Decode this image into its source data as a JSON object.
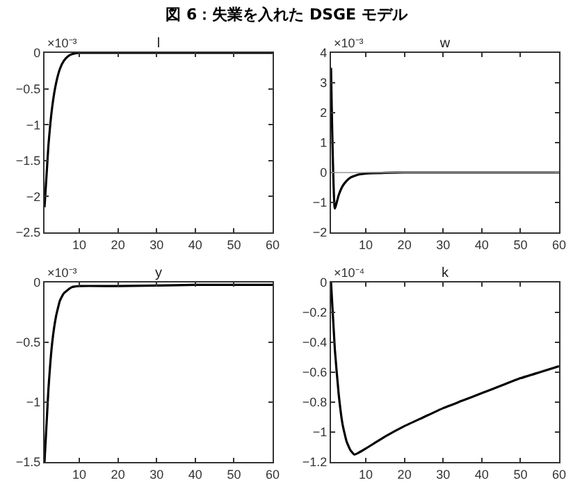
{
  "chart_data": [
    {
      "type": "line",
      "title": "l",
      "ylabel": "×10⁻³",
      "annotations": [
        "図 6：失業を入れた DSGE モデル"
      ],
      "xlim": [
        1,
        60
      ],
      "xticks": [
        10,
        20,
        30,
        40,
        50,
        60
      ],
      "ylim": [
        -2.5,
        0
      ],
      "yticks": [
        -2.5,
        -2,
        -1.5,
        -1,
        -0.5,
        0
      ],
      "x": [
        1,
        2,
        3,
        4,
        5,
        6,
        7,
        8,
        10,
        20,
        60
      ],
      "series": [
        {
          "color": "#000000",
          "values": [
            -2.15,
            -1.3,
            -0.75,
            -0.42,
            -0.22,
            -0.11,
            -0.05,
            -0.02,
            0,
            0,
            0
          ]
        }
      ]
    },
    {
      "type": "line",
      "title": "w",
      "ylabel": "×10⁻³",
      "xlim": [
        1,
        60
      ],
      "xticks": [
        10,
        20,
        30,
        40,
        50,
        60
      ],
      "ylim": [
        -2,
        4
      ],
      "yticks": [
        -2,
        -1,
        0,
        1,
        2,
        3,
        4
      ],
      "ref_lines": [
        {
          "axis": "y",
          "value": 0,
          "color": "#999999"
        }
      ],
      "x": [
        1,
        2,
        3,
        4,
        5,
        6,
        8,
        10,
        15,
        20,
        60
      ],
      "series": [
        {
          "color": "#000000",
          "values": [
            3.5,
            -1.2,
            -0.75,
            -0.45,
            -0.28,
            -0.17,
            -0.07,
            -0.03,
            -0.01,
            0,
            0
          ]
        }
      ]
    },
    {
      "type": "line",
      "title": "y",
      "ylabel": "×10⁻³",
      "xlim": [
        1,
        60
      ],
      "xticks": [
        10,
        20,
        30,
        40,
        50,
        60
      ],
      "ylim": [
        -1.5,
        0
      ],
      "yticks": [
        -1.5,
        -1,
        -0.5,
        0
      ],
      "x": [
        1,
        2,
        3,
        4,
        5,
        6,
        8,
        10,
        20,
        40,
        60
      ],
      "series": [
        {
          "color": "#000000",
          "values": [
            -1.5,
            -0.9,
            -0.5,
            -0.28,
            -0.15,
            -0.09,
            -0.04,
            -0.03,
            -0.03,
            -0.02,
            -0.02
          ]
        }
      ]
    },
    {
      "type": "line",
      "title": "k",
      "ylabel": "×10⁻⁴",
      "xlim": [
        1,
        60
      ],
      "xticks": [
        10,
        20,
        30,
        40,
        50,
        60
      ],
      "ylim": [
        -1.2,
        0
      ],
      "yticks": [
        -1.2,
        -1,
        -0.8,
        -0.6,
        -0.4,
        -0.2,
        0
      ],
      "x": [
        1,
        2,
        3,
        4,
        5,
        6,
        7,
        8,
        10,
        15,
        20,
        25,
        30,
        35,
        40,
        45,
        50,
        55,
        60
      ],
      "series": [
        {
          "color": "#000000",
          "values": [
            0,
            -0.45,
            -0.75,
            -0.95,
            -1.06,
            -1.12,
            -1.15,
            -1.14,
            -1.11,
            -1.03,
            -0.96,
            -0.9,
            -0.84,
            -0.79,
            -0.74,
            -0.69,
            -0.64,
            -0.6,
            -0.56
          ]
        }
      ]
    }
  ]
}
